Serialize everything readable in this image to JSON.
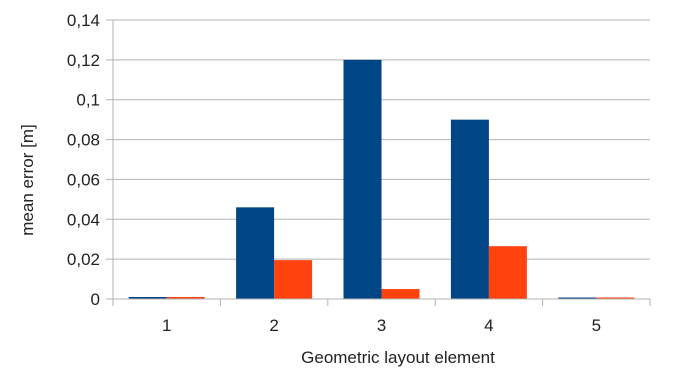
{
  "chart_data": {
    "type": "bar",
    "title": "",
    "xlabel": "Geometric layout element",
    "ylabel": "mean error [m]",
    "categories": [
      "1",
      "2",
      "3",
      "4",
      "5"
    ],
    "series": [
      {
        "values": [
          0.001,
          0.046,
          0.12,
          0.09,
          0.0005
        ],
        "color": "#004586"
      },
      {
        "values": [
          0.001,
          0.0195,
          0.005,
          0.0265,
          0.0002
        ],
        "color": "#ff420e"
      }
    ],
    "ylim": [
      0,
      0.14
    ],
    "yticks": [
      0,
      0.02,
      0.04,
      0.06,
      0.08,
      0.1,
      0.12,
      0.14
    ],
    "ytick_labels": [
      "0",
      "0,02",
      "0,04",
      "0,06",
      "0,08",
      "0,1",
      "0,12",
      "0,14"
    ],
    "grid": "horizontal",
    "legend": "none"
  }
}
